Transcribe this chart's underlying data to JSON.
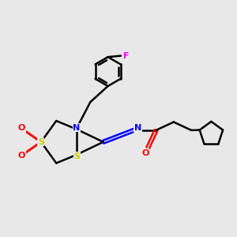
{
  "bg_color": "#e8e8e8",
  "bond_color": "#000000",
  "S_color": "#cccc00",
  "N_color": "#0000ff",
  "O_color": "#ff0000",
  "F_color": "#ff00ff",
  "bond_width": 1.8,
  "xlim": [
    -3.5,
    6.5
  ],
  "ylim": [
    -3.0,
    5.0
  ]
}
